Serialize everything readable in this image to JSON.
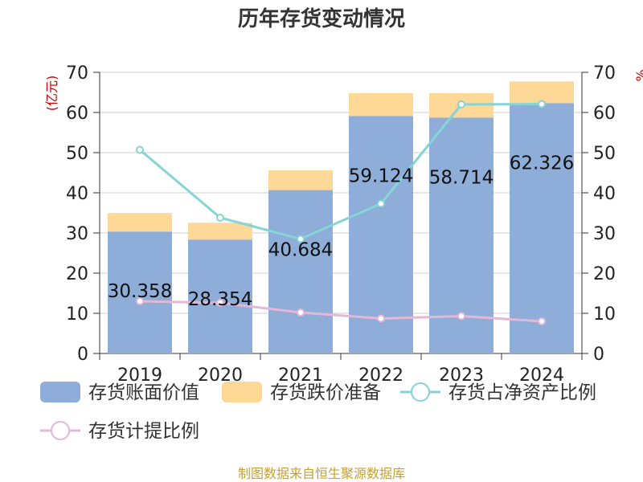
{
  "chart_data": {
    "type": "bar",
    "title": "历年存货变动情况",
    "unit_label": "(亿元)",
    "right_unit_label": "%",
    "categories": [
      "2019",
      "2020",
      "2021",
      "2022",
      "2023",
      "2024"
    ],
    "ylim": [
      0,
      70
    ],
    "y_ticks": [
      0,
      10,
      20,
      30,
      40,
      50,
      60,
      70
    ],
    "y2lim": [
      0,
      70
    ],
    "y2_ticks": [
      0,
      10,
      20,
      30,
      40,
      50,
      60,
      70
    ],
    "bar_series": [
      {
        "name": "存货账面价值",
        "color": "#8eadd9",
        "values": [
          30.358,
          28.354,
          40.684,
          59.124,
          58.714,
          62.326
        ],
        "labels": [
          "30.358",
          "28.354",
          "40.684",
          "59.124",
          "58.714",
          "62.326"
        ]
      },
      {
        "name": "存货跌价准备",
        "color": "#fdd897",
        "values": [
          4.6,
          4.2,
          4.9,
          5.7,
          6.1,
          5.4
        ]
      }
    ],
    "line_series": [
      {
        "name": "存货占净资产比例",
        "color": "#86d4d6",
        "axis": "right",
        "values": [
          50.7,
          33.8,
          28.5,
          37.3,
          62.0,
          62.1
        ]
      },
      {
        "name": "存货计提比例",
        "color": "#e4b7d6",
        "axis": "right",
        "values": [
          13.0,
          12.6,
          10.2,
          8.7,
          9.3,
          8.0
        ]
      }
    ],
    "grid": true,
    "legend_position": "bottom"
  },
  "source": "制图数据来自恒生聚源数据库"
}
